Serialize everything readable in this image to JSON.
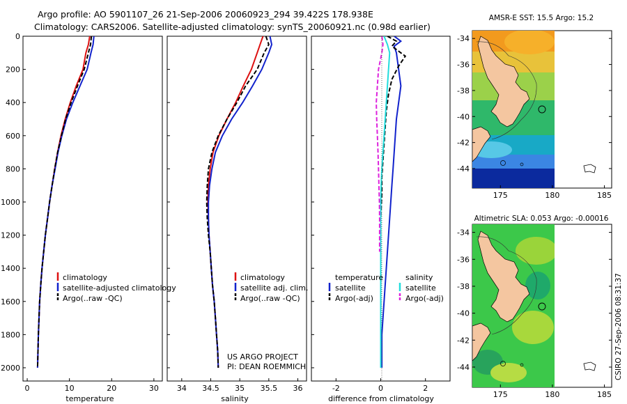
{
  "header": {
    "line1": "Argo profile: AO 5901107_26 21-Sep-2006 20060923_294 39.422S 178.938E",
    "line2": "Climatology: CARS2006. Satellite-adjusted climatology: synTS_20060921.nc (0.98d earlier)"
  },
  "credits": {
    "project": "US ARGO PROJECT",
    "pi": "PI: DEAN ROEMMICH",
    "stamp": "CSIRO 27-Sep-2006 08:31:37"
  },
  "colors": {
    "climatology": "#dd1111",
    "satellite": "#1122cc",
    "argo": "#000000",
    "sat_salinity": "#22dddd",
    "argo_salinity": "#dd22dd",
    "land": "#f4c6a0"
  },
  "chart_data": [
    {
      "type": "line",
      "name": "temperature-profile",
      "xlabel": "temperature",
      "ylabel": "",
      "xlim": [
        -1,
        32
      ],
      "ylim": [
        2080,
        0
      ],
      "xticks": [
        "0",
        "10",
        "20",
        "30"
      ],
      "yticks": [
        "0",
        "200",
        "400",
        "600",
        "800",
        "1000",
        "1200",
        "1400",
        "1600",
        "1800",
        "2000"
      ],
      "legend": [
        "climatology",
        "satellite-adjusted climatology",
        "Argo(..raw -QC)"
      ],
      "series": [
        {
          "name": "climatology",
          "color": "#dd1111",
          "dash": "",
          "points": [
            [
              14.8,
              0
            ],
            [
              14.5,
              50
            ],
            [
              13.9,
              100
            ],
            [
              13.2,
              200
            ],
            [
              11.6,
              300
            ],
            [
              10.2,
              400
            ],
            [
              9.0,
              500
            ],
            [
              8.0,
              600
            ],
            [
              7.2,
              700
            ],
            [
              6.5,
              800
            ],
            [
              5.9,
              900
            ],
            [
              5.3,
              1000
            ],
            [
              4.8,
              1100
            ],
            [
              4.3,
              1200
            ],
            [
              3.9,
              1300
            ],
            [
              3.5,
              1400
            ],
            [
              3.2,
              1500
            ],
            [
              2.95,
              1600
            ],
            [
              2.8,
              1700
            ],
            [
              2.65,
              1800
            ],
            [
              2.55,
              1900
            ],
            [
              2.45,
              2000
            ]
          ]
        },
        {
          "name": "satellite-adjusted climatology",
          "color": "#1122cc",
          "dash": "",
          "points": [
            [
              15.8,
              0
            ],
            [
              15.6,
              50
            ],
            [
              15.1,
              100
            ],
            [
              14.2,
              200
            ],
            [
              12.5,
              300
            ],
            [
              10.8,
              400
            ],
            [
              9.3,
              500
            ],
            [
              8.2,
              600
            ],
            [
              7.3,
              700
            ],
            [
              6.6,
              800
            ],
            [
              5.9,
              900
            ],
            [
              5.3,
              1000
            ],
            [
              4.8,
              1100
            ],
            [
              4.3,
              1200
            ],
            [
              3.9,
              1300
            ],
            [
              3.5,
              1400
            ],
            [
              3.2,
              1500
            ],
            [
              2.95,
              1600
            ],
            [
              2.8,
              1700
            ],
            [
              2.65,
              1800
            ],
            [
              2.55,
              1900
            ],
            [
              2.45,
              2000
            ]
          ]
        },
        {
          "name": "Argo(..raw -QC)",
          "color": "#000000",
          "dash": "6,3",
          "points": [
            [
              15.2,
              0
            ],
            [
              15.0,
              50
            ],
            [
              14.5,
              100
            ],
            [
              13.5,
              200
            ],
            [
              11.9,
              300
            ],
            [
              10.4,
              400
            ],
            [
              9.1,
              500
            ],
            [
              8.1,
              600
            ],
            [
              7.2,
              700
            ],
            [
              6.5,
              800
            ],
            [
              5.9,
              900
            ],
            [
              5.3,
              1000
            ],
            [
              4.8,
              1100
            ],
            [
              4.3,
              1200
            ],
            [
              3.9,
              1300
            ],
            [
              3.5,
              1400
            ],
            [
              3.2,
              1500
            ],
            [
              2.95,
              1600
            ],
            [
              2.8,
              1700
            ],
            [
              2.65,
              1800
            ],
            [
              2.55,
              1900
            ],
            [
              2.45,
              2000
            ]
          ]
        }
      ]
    },
    {
      "type": "line",
      "name": "salinity-profile",
      "xlabel": "salinity",
      "ylabel": "",
      "xlim": [
        33.75,
        36.15
      ],
      "ylim": [
        2080,
        0
      ],
      "xticks": [
        "34",
        "34.5",
        "35",
        "35.5",
        "36"
      ],
      "yticks": [],
      "legend": [
        "climatology",
        "satellite adj. clim.",
        "Argo(..raw -QC)"
      ],
      "series": [
        {
          "name": "climatology",
          "color": "#dd1111",
          "dash": "",
          "points": [
            [
              35.4,
              0
            ],
            [
              35.35,
              50
            ],
            [
              35.3,
              100
            ],
            [
              35.2,
              200
            ],
            [
              35.06,
              300
            ],
            [
              34.93,
              400
            ],
            [
              34.78,
              500
            ],
            [
              34.64,
              600
            ],
            [
              34.54,
              700
            ],
            [
              34.49,
              800
            ],
            [
              34.46,
              900
            ],
            [
              34.45,
              1000
            ],
            [
              34.46,
              1100
            ],
            [
              34.47,
              1200
            ],
            [
              34.49,
              1300
            ],
            [
              34.51,
              1400
            ],
            [
              34.53,
              1500
            ],
            [
              34.56,
              1600
            ],
            [
              34.58,
              1700
            ],
            [
              34.6,
              1800
            ],
            [
              34.62,
              1900
            ],
            [
              34.63,
              2000
            ]
          ]
        },
        {
          "name": "satellite adj. clim.",
          "color": "#1122cc",
          "dash": "",
          "points": [
            [
              35.52,
              0
            ],
            [
              35.55,
              50
            ],
            [
              35.5,
              100
            ],
            [
              35.38,
              200
            ],
            [
              35.22,
              300
            ],
            [
              35.05,
              400
            ],
            [
              34.86,
              500
            ],
            [
              34.7,
              600
            ],
            [
              34.58,
              700
            ],
            [
              34.52,
              800
            ],
            [
              34.48,
              900
            ],
            [
              34.46,
              1000
            ],
            [
              34.46,
              1100
            ],
            [
              34.47,
              1200
            ],
            [
              34.49,
              1300
            ],
            [
              34.51,
              1400
            ],
            [
              34.53,
              1500
            ],
            [
              34.56,
              1600
            ],
            [
              34.58,
              1700
            ],
            [
              34.6,
              1800
            ],
            [
              34.62,
              1900
            ],
            [
              34.63,
              2000
            ]
          ]
        },
        {
          "name": "Argo(..raw -QC)",
          "color": "#000000",
          "dash": "6,3",
          "points": [
            [
              35.45,
              0
            ],
            [
              35.5,
              50
            ],
            [
              35.42,
              100
            ],
            [
              35.3,
              200
            ],
            [
              35.1,
              300
            ],
            [
              34.95,
              400
            ],
            [
              34.78,
              500
            ],
            [
              34.63,
              600
            ],
            [
              34.52,
              700
            ],
            [
              34.46,
              800
            ],
            [
              34.44,
              900
            ],
            [
              34.43,
              1000
            ],
            [
              34.44,
              1100
            ],
            [
              34.46,
              1200
            ],
            [
              34.49,
              1300
            ],
            [
              34.51,
              1400
            ],
            [
              34.53,
              1500
            ],
            [
              34.56,
              1600
            ],
            [
              34.58,
              1700
            ],
            [
              34.6,
              1800
            ],
            [
              34.62,
              1900
            ],
            [
              34.63,
              2000
            ]
          ]
        }
      ]
    },
    {
      "type": "line",
      "name": "difference-profile",
      "xlabel": "difference from climatology",
      "ylabel": "",
      "xlim": [
        -3.1,
        3.1
      ],
      "ylim": [
        2080,
        0
      ],
      "xticks": [
        "-2",
        "0",
        "2"
      ],
      "yticks": [],
      "legend_groups": [
        {
          "title": "temperature",
          "items": [
            "satellite",
            "Argo(-adj)"
          ]
        },
        {
          "title": "salinity",
          "items": [
            "satellite",
            "Argo(-adj)"
          ]
        }
      ],
      "series": [
        {
          "name": "temperature satellite",
          "color": "#1122cc",
          "dash": "",
          "points": [
            [
              0.6,
              0
            ],
            [
              0.9,
              30
            ],
            [
              0.6,
              60
            ],
            [
              0.7,
              100
            ],
            [
              0.8,
              200
            ],
            [
              0.9,
              300
            ],
            [
              0.8,
              400
            ],
            [
              0.7,
              500
            ],
            [
              0.65,
              600
            ],
            [
              0.6,
              700
            ],
            [
              0.55,
              800
            ],
            [
              0.5,
              900
            ],
            [
              0.45,
              1000
            ],
            [
              0.4,
              1100
            ],
            [
              0.35,
              1200
            ],
            [
              0.3,
              1300
            ],
            [
              0.25,
              1400
            ],
            [
              0.2,
              1500
            ],
            [
              0.15,
              1600
            ],
            [
              0.1,
              1700
            ],
            [
              0.05,
              1800
            ],
            [
              0.05,
              1900
            ],
            [
              0.05,
              2000
            ]
          ]
        },
        {
          "name": "temperature Argo(-adj)",
          "color": "#000000",
          "dash": "6,3",
          "points": [
            [
              0.3,
              0
            ],
            [
              0.7,
              30
            ],
            [
              0.5,
              60
            ],
            [
              1.1,
              120
            ],
            [
              0.8,
              180
            ],
            [
              0.5,
              260
            ],
            [
              0.35,
              350
            ],
            [
              0.25,
              450
            ],
            [
              0.2,
              550
            ],
            [
              0.15,
              650
            ],
            [
              0.1,
              750
            ],
            [
              0.05,
              850
            ],
            [
              0.05,
              950
            ],
            [
              0.0,
              1100
            ],
            [
              0.0,
              1300
            ],
            [
              0.0,
              1500
            ],
            [
              0.0,
              1700
            ],
            [
              0.0,
              1900
            ],
            [
              0.0,
              2000
            ]
          ]
        },
        {
          "name": "salinity satellite",
          "color": "#22dddd",
          "dash": "",
          "points": [
            [
              0.15,
              0
            ],
            [
              0.3,
              50
            ],
            [
              0.4,
              100
            ],
            [
              0.35,
              200
            ],
            [
              0.3,
              300
            ],
            [
              0.25,
              400
            ],
            [
              0.2,
              500
            ],
            [
              0.15,
              600
            ],
            [
              0.1,
              700
            ],
            [
              0.05,
              800
            ],
            [
              0.02,
              900
            ],
            [
              0.0,
              1000
            ],
            [
              0.0,
              1100
            ],
            [
              0.0,
              1200
            ],
            [
              0.0,
              1400
            ],
            [
              0.0,
              1600
            ],
            [
              0.0,
              1800
            ],
            [
              0.0,
              2000
            ]
          ]
        },
        {
          "name": "salinity Argo(-adj)",
          "color": "#dd22dd",
          "dash": "6,3",
          "points": [
            [
              0.05,
              0
            ],
            [
              0.1,
              50
            ],
            [
              0.05,
              100
            ],
            [
              -0.1,
              200
            ],
            [
              -0.15,
              300
            ],
            [
              -0.2,
              400
            ],
            [
              -0.18,
              500
            ],
            [
              -0.15,
              600
            ],
            [
              -0.12,
              700
            ],
            [
              -0.1,
              800
            ],
            [
              -0.08,
              900
            ],
            [
              -0.06,
              1000
            ],
            [
              -0.05,
              1100
            ],
            [
              -0.05,
              1200
            ],
            [
              -0.05,
              1300
            ]
          ]
        }
      ]
    },
    {
      "type": "heatmap",
      "name": "sst-map",
      "title": "AMSR-E SST: 15.5 Argo: 15.2",
      "xticks": [
        "175",
        "180",
        "185"
      ],
      "yticks": [
        "-34",
        "-36",
        "-38",
        "-40",
        "-42",
        "-44"
      ],
      "xlim": [
        172.3,
        185.7
      ],
      "ylim": [
        -45.5,
        -33.4
      ]
    },
    {
      "type": "heatmap",
      "name": "sla-map",
      "title": "Altimetric SLA: 0.053 Argo: -0.00016",
      "xticks": [
        "175",
        "180",
        "185"
      ],
      "yticks": [
        "-34",
        "-36",
        "-38",
        "-40",
        "-42",
        "-44"
      ],
      "xlim": [
        172.3,
        185.7
      ],
      "ylim": [
        -45.5,
        -33.4
      ]
    }
  ]
}
